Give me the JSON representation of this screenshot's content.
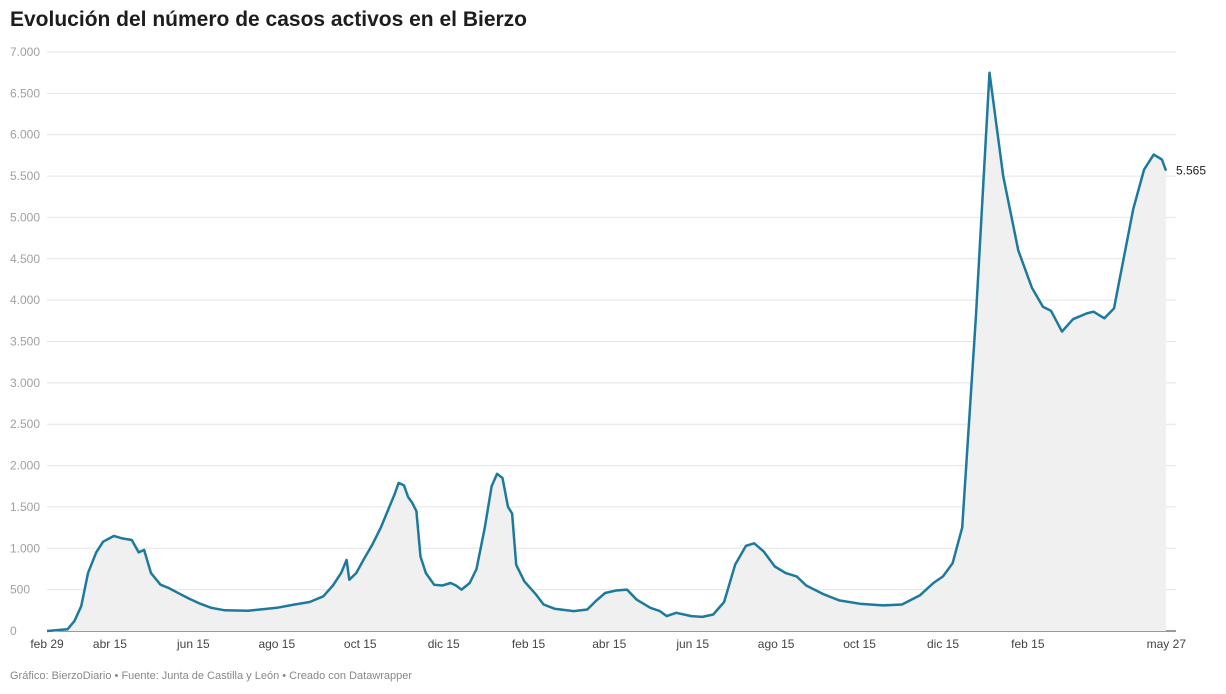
{
  "chart_data": {
    "type": "area",
    "title": "Evolución del número de casos activos en el Bierzo",
    "xlabel": "",
    "ylabel": "",
    "ylim": [
      0,
      7000
    ],
    "yticks": [
      0,
      500,
      1000,
      1500,
      2000,
      2500,
      3000,
      3500,
      4000,
      4500,
      5000,
      5500,
      6000,
      6500,
      7000
    ],
    "ytick_labels": [
      "0",
      "500",
      "1.000",
      "1.500",
      "2.000",
      "2.500",
      "3.000",
      "3.500",
      "4.000",
      "4.500",
      "5.000",
      "5.500",
      "6.000",
      "6.500",
      "7.000"
    ],
    "xlim": [
      "2020-02-29",
      "2022-05-27"
    ],
    "xticks": [
      {
        "date": "2020-02-29",
        "label": "feb 29"
      },
      {
        "date": "2020-04-15",
        "label": "abr 15"
      },
      {
        "date": "2020-06-15",
        "label": "jun 15"
      },
      {
        "date": "2020-08-15",
        "label": "ago 15"
      },
      {
        "date": "2020-10-15",
        "label": "oct 15"
      },
      {
        "date": "2020-12-15",
        "label": "dic 15"
      },
      {
        "date": "2021-02-15",
        "label": "feb 15"
      },
      {
        "date": "2021-04-15",
        "label": "abr 15"
      },
      {
        "date": "2021-06-15",
        "label": "jun 15"
      },
      {
        "date": "2021-08-15",
        "label": "ago 15"
      },
      {
        "date": "2021-10-15",
        "label": "oct 15"
      },
      {
        "date": "2021-12-15",
        "label": "dic 15"
      },
      {
        "date": "2022-02-15",
        "label": "feb 15"
      },
      {
        "date": "2022-05-27",
        "label": "may 27"
      }
    ],
    "grid": true,
    "line_color": "#1d7a9c",
    "area_color": "#f0f0f0",
    "end_label": "5.565",
    "series": [
      {
        "points": [
          [
            "2020-02-29",
            0
          ],
          [
            "2020-03-15",
            20
          ],
          [
            "2020-03-20",
            120
          ],
          [
            "2020-03-25",
            300
          ],
          [
            "2020-03-30",
            700
          ],
          [
            "2020-04-05",
            950
          ],
          [
            "2020-04-10",
            1080
          ],
          [
            "2020-04-18",
            1150
          ],
          [
            "2020-04-24",
            1120
          ],
          [
            "2020-05-01",
            1100
          ],
          [
            "2020-05-06",
            950
          ],
          [
            "2020-05-10",
            980
          ],
          [
            "2020-05-15",
            700
          ],
          [
            "2020-05-22",
            560
          ],
          [
            "2020-05-28",
            520
          ],
          [
            "2020-06-05",
            450
          ],
          [
            "2020-06-12",
            390
          ],
          [
            "2020-06-20",
            330
          ],
          [
            "2020-06-28",
            280
          ],
          [
            "2020-07-08",
            250
          ],
          [
            "2020-07-25",
            245
          ],
          [
            "2020-08-15",
            280
          ],
          [
            "2020-08-28",
            320
          ],
          [
            "2020-09-08",
            350
          ],
          [
            "2020-09-18",
            420
          ],
          [
            "2020-09-25",
            550
          ],
          [
            "2020-10-01",
            700
          ],
          [
            "2020-10-05",
            860
          ],
          [
            "2020-10-07",
            620
          ],
          [
            "2020-10-12",
            700
          ],
          [
            "2020-10-18",
            880
          ],
          [
            "2020-10-24",
            1050
          ],
          [
            "2020-10-30",
            1250
          ],
          [
            "2020-11-04",
            1450
          ],
          [
            "2020-11-09",
            1650
          ],
          [
            "2020-11-12",
            1790
          ],
          [
            "2020-11-16",
            1760
          ],
          [
            "2020-11-19",
            1620
          ],
          [
            "2020-11-22",
            1550
          ],
          [
            "2020-11-25",
            1450
          ],
          [
            "2020-11-28",
            900
          ],
          [
            "2020-12-02",
            700
          ],
          [
            "2020-12-08",
            560
          ],
          [
            "2020-12-14",
            550
          ],
          [
            "2020-12-20",
            580
          ],
          [
            "2020-12-24",
            550
          ],
          [
            "2020-12-28",
            500
          ],
          [
            "2021-01-03",
            580
          ],
          [
            "2021-01-08",
            750
          ],
          [
            "2021-01-14",
            1250
          ],
          [
            "2021-01-19",
            1750
          ],
          [
            "2021-01-23",
            1900
          ],
          [
            "2021-01-27",
            1850
          ],
          [
            "2021-01-31",
            1500
          ],
          [
            "2021-02-03",
            1420
          ],
          [
            "2021-02-06",
            800
          ],
          [
            "2021-02-12",
            600
          ],
          [
            "2021-02-20",
            450
          ],
          [
            "2021-02-26",
            320
          ],
          [
            "2021-03-06",
            270
          ],
          [
            "2021-03-20",
            240
          ],
          [
            "2021-03-30",
            260
          ],
          [
            "2021-04-05",
            360
          ],
          [
            "2021-04-12",
            460
          ],
          [
            "2021-04-20",
            490
          ],
          [
            "2021-04-28",
            500
          ],
          [
            "2021-05-05",
            380
          ],
          [
            "2021-05-15",
            280
          ],
          [
            "2021-05-22",
            240
          ],
          [
            "2021-05-27",
            180
          ],
          [
            "2021-06-03",
            220
          ],
          [
            "2021-06-14",
            180
          ],
          [
            "2021-06-22",
            170
          ],
          [
            "2021-06-30",
            200
          ],
          [
            "2021-07-08",
            350
          ],
          [
            "2021-07-16",
            800
          ],
          [
            "2021-07-24",
            1030
          ],
          [
            "2021-07-30",
            1060
          ],
          [
            "2021-08-06",
            960
          ],
          [
            "2021-08-14",
            780
          ],
          [
            "2021-08-22",
            700
          ],
          [
            "2021-08-30",
            660
          ],
          [
            "2021-09-06",
            550
          ],
          [
            "2021-09-18",
            450
          ],
          [
            "2021-09-30",
            370
          ],
          [
            "2021-10-15",
            330
          ],
          [
            "2021-11-01",
            310
          ],
          [
            "2021-11-15",
            320
          ],
          [
            "2021-11-28",
            430
          ],
          [
            "2021-12-08",
            580
          ],
          [
            "2021-12-15",
            660
          ],
          [
            "2021-12-22",
            820
          ],
          [
            "2021-12-29",
            1250
          ],
          [
            "2022-01-08",
            3800
          ],
          [
            "2022-01-18",
            6750
          ],
          [
            "2022-01-28",
            5500
          ],
          [
            "2022-02-08",
            4600
          ],
          [
            "2022-02-18",
            4150
          ],
          [
            "2022-02-26",
            3920
          ],
          [
            "2022-03-04",
            3870
          ],
          [
            "2022-03-12",
            3620
          ],
          [
            "2022-03-20",
            3770
          ],
          [
            "2022-03-30",
            3840
          ],
          [
            "2022-04-04",
            3860
          ],
          [
            "2022-04-12",
            3780
          ],
          [
            "2022-04-19",
            3900
          ],
          [
            "2022-04-26",
            4500
          ],
          [
            "2022-05-03",
            5100
          ],
          [
            "2022-05-11",
            5580
          ],
          [
            "2022-05-18",
            5760
          ],
          [
            "2022-05-24",
            5700
          ],
          [
            "2022-05-27",
            5565
          ]
        ]
      }
    ]
  },
  "footer": {
    "credit": "Gráfico: BierzoDiario • Fuente: Junta de Castilla y León • Creado con Datawrapper"
  }
}
